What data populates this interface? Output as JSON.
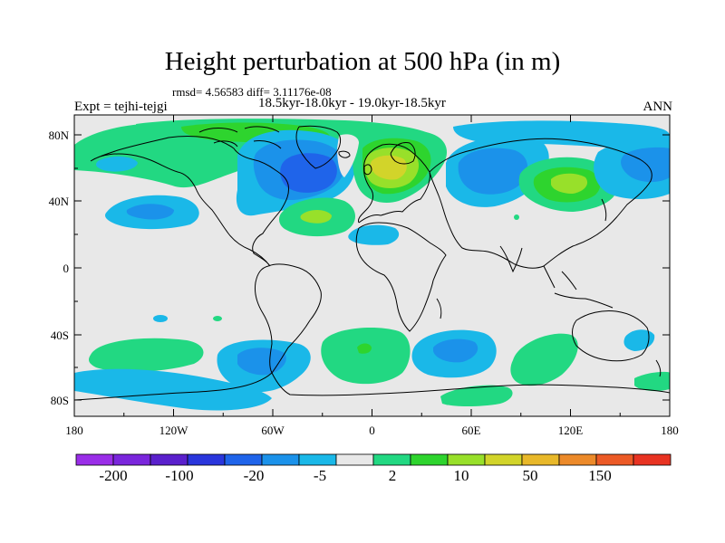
{
  "header": {
    "title": "Height perturbation at 500 hPa (in m)",
    "stats": "rmsd= 4.56583  diff= 3.11176e-08",
    "period": "18.5kyr-18.0kyr - 19.0kyr-18.5kyr",
    "experiment": "Expt = tejhi-tejgi",
    "season": "ANN"
  },
  "map": {
    "projection": "cylindrical-equidistant",
    "lon_range": [
      -180,
      180
    ],
    "lat_range": [
      -90,
      90
    ],
    "lon_tick_labels": [
      "180",
      "120W",
      "60W",
      "0",
      "60E",
      "120E",
      "180"
    ],
    "lat_tick_labels": [
      "80N",
      "40N",
      "0",
      "40S",
      "80S"
    ],
    "background_color": "#e8e8e8"
  },
  "colorbar": {
    "colors": [
      "#9a2ee8",
      "#7a26dc",
      "#5a20cc",
      "#2a36dc",
      "#1f64ea",
      "#1b92ea",
      "#1ab8e8",
      "#e8e8e8",
      "#22d882",
      "#2ed42e",
      "#98e02a",
      "#d2d42a",
      "#e8b82a",
      "#ec8a2a",
      "#ec5a26",
      "#e83322"
    ],
    "labels": [
      "-200",
      "-100",
      "-20",
      "-5",
      "2",
      "10",
      "50",
      "150"
    ]
  }
}
